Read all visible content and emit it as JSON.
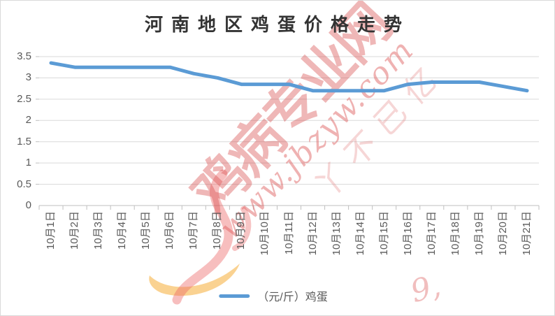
{
  "chart_data": {
    "type": "line",
    "title": "河南地区鸡蛋价格走势",
    "categories": [
      "10月1日",
      "10月2日",
      "10月3日",
      "10月4日",
      "10月5日",
      "10月6日",
      "10月7日",
      "10月8日",
      "10月9日",
      "10月10日",
      "10月11日",
      "10月12日",
      "10月13日",
      "10月14日",
      "10月15日",
      "10月16日",
      "10月17日",
      "10月18日",
      "10月19日",
      "10月20日",
      "10月21日"
    ],
    "series": [
      {
        "name": "（元/斤）鸡蛋",
        "values": [
          3.35,
          3.25,
          3.25,
          3.25,
          3.25,
          3.25,
          3.1,
          3.0,
          2.85,
          2.85,
          2.85,
          2.7,
          2.7,
          2.7,
          2.7,
          2.85,
          2.9,
          2.9,
          2.9,
          2.8,
          2.7
        ]
      }
    ],
    "ylim": [
      0,
      3.5
    ],
    "yticks": [
      0,
      0.5,
      1,
      1.5,
      2,
      2.5,
      3,
      3.5
    ],
    "ytick_labels": [
      "0",
      "0.5",
      "1",
      "1.5",
      "2",
      "2.5",
      "3",
      "3.5"
    ],
    "grid": true,
    "legend_position": "bottom"
  },
  "legend": {
    "label": "（元/斤）鸡蛋"
  },
  "watermark": {
    "site_name": "鸡病专业网",
    "site_url": "www.jbzyw.com",
    "faint_marks": "丫不已亿",
    "corner_mark": "9,"
  },
  "colors": {
    "line": "#5B9BD5",
    "gridline": "#D9D9D9",
    "axis": "#BFBFBF",
    "label": "#595959",
    "title": "#333333",
    "watermark_red": "#D84C4C",
    "watermark_orange": "#F5A623"
  }
}
